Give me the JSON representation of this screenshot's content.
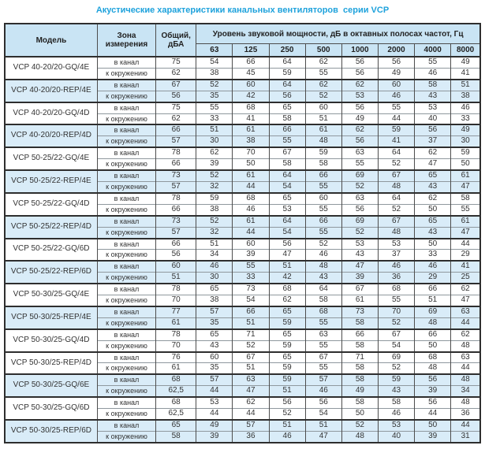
{
  "title": "Акустические характеристики канальных вентиляторов  серии VCP",
  "colors": {
    "title": "#1ea2dc",
    "header_bg": "#c9e4f4",
    "shaded_row_bg": "#d9ecf8",
    "border_dark": "#2e2e2e"
  },
  "table": {
    "headers": {
      "model": "Модель",
      "zone": "Зона измерения",
      "total": "Общий, дБА",
      "spl": "Уровень звуковой мощности, дБ в октавных полосах частот, Гц"
    },
    "freqs": [
      "63",
      "125",
      "250",
      "500",
      "1000",
      "2000",
      "4000",
      "8000"
    ],
    "zone_labels": [
      "в канал",
      "к окружению"
    ],
    "rows": [
      {
        "model": "VCP 40-20/20-GQ/4E",
        "shaded": false,
        "in_duct": {
          "total": "75",
          "values": [
            "54",
            "66",
            "64",
            "62",
            "56",
            "56",
            "55",
            "49"
          ]
        },
        "to_env": {
          "total": "62",
          "values": [
            "38",
            "45",
            "59",
            "55",
            "56",
            "49",
            "46",
            "41"
          ]
        }
      },
      {
        "model": "VCP 40-20/20-REP/4E",
        "shaded": true,
        "in_duct": {
          "total": "67",
          "values": [
            "52",
            "60",
            "64",
            "62",
            "62",
            "60",
            "58",
            "51"
          ]
        },
        "to_env": {
          "total": "56",
          "values": [
            "35",
            "42",
            "56",
            "52",
            "53",
            "46",
            "43",
            "38"
          ]
        }
      },
      {
        "model": "VCP 40-20/20-GQ/4D",
        "shaded": false,
        "in_duct": {
          "total": "75",
          "values": [
            "55",
            "68",
            "65",
            "60",
            "56",
            "55",
            "53",
            "46"
          ]
        },
        "to_env": {
          "total": "62",
          "values": [
            "33",
            "41",
            "58",
            "51",
            "49",
            "44",
            "40",
            "33"
          ]
        }
      },
      {
        "model": "VCP 40-20/20-REP/4D",
        "shaded": true,
        "in_duct": {
          "total": "66",
          "values": [
            "51",
            "61",
            "66",
            "61",
            "62",
            "59",
            "56",
            "49"
          ]
        },
        "to_env": {
          "total": "57",
          "values": [
            "30",
            "38",
            "55",
            "48",
            "56",
            "41",
            "37",
            "30"
          ]
        }
      },
      {
        "model": "VCP 50-25/22-GQ/4E",
        "shaded": false,
        "in_duct": {
          "total": "78",
          "values": [
            "62",
            "70",
            "67",
            "59",
            "63",
            "64",
            "62",
            "59"
          ]
        },
        "to_env": {
          "total": "66",
          "values": [
            "39",
            "50",
            "58",
            "58",
            "55",
            "52",
            "47",
            "50"
          ]
        }
      },
      {
        "model": "VCP 50-25/22-REP/4E",
        "shaded": true,
        "in_duct": {
          "total": "73",
          "values": [
            "52",
            "61",
            "64",
            "66",
            "69",
            "67",
            "65",
            "61"
          ]
        },
        "to_env": {
          "total": "57",
          "values": [
            "32",
            "44",
            "54",
            "55",
            "52",
            "48",
            "43",
            "47"
          ]
        }
      },
      {
        "model": "VCP 50-25/22-GQ/4D",
        "shaded": false,
        "in_duct": {
          "total": "78",
          "values": [
            "59",
            "68",
            "65",
            "60",
            "63",
            "64",
            "62",
            "58"
          ]
        },
        "to_env": {
          "total": "66",
          "values": [
            "38",
            "46",
            "53",
            "55",
            "56",
            "52",
            "50",
            "55"
          ]
        }
      },
      {
        "model": "VCP 50-25/22-REP/4D",
        "shaded": true,
        "in_duct": {
          "total": "73",
          "values": [
            "52",
            "61",
            "64",
            "66",
            "69",
            "67",
            "65",
            "61"
          ]
        },
        "to_env": {
          "total": "57",
          "values": [
            "32",
            "44",
            "54",
            "55",
            "52",
            "48",
            "43",
            "47"
          ]
        }
      },
      {
        "model": "VCP 50-25/22-GQ/6D",
        "shaded": false,
        "in_duct": {
          "total": "66",
          "values": [
            "51",
            "60",
            "56",
            "52",
            "53",
            "53",
            "50",
            "44"
          ]
        },
        "to_env": {
          "total": "56",
          "values": [
            "34",
            "39",
            "47",
            "46",
            "43",
            "37",
            "33",
            "29"
          ]
        }
      },
      {
        "model": "VCP 50-25/22-REP/6D",
        "shaded": true,
        "in_duct": {
          "total": "60",
          "values": [
            "46",
            "55",
            "51",
            "48",
            "47",
            "46",
            "46",
            "41"
          ]
        },
        "to_env": {
          "total": "51",
          "values": [
            "30",
            "33",
            "42",
            "43",
            "39",
            "36",
            "29",
            "25"
          ]
        }
      },
      {
        "model": "VCP 50-30/25-GQ/4E",
        "shaded": false,
        "in_duct": {
          "total": "78",
          "values": [
            "65",
            "73",
            "68",
            "64",
            "67",
            "68",
            "66",
            "62"
          ]
        },
        "to_env": {
          "total": "70",
          "values": [
            "38",
            "54",
            "62",
            "58",
            "61",
            "55",
            "51",
            "47"
          ]
        }
      },
      {
        "model": "VCP 50-30/25-REP/4E",
        "shaded": true,
        "in_duct": {
          "total": "77",
          "values": [
            "57",
            "66",
            "65",
            "68",
            "73",
            "70",
            "69",
            "63"
          ]
        },
        "to_env": {
          "total": "61",
          "values": [
            "35",
            "51",
            "59",
            "55",
            "58",
            "52",
            "48",
            "44"
          ]
        }
      },
      {
        "model": "VCP 50-30/25-GQ/4D",
        "shaded": false,
        "in_duct": {
          "total": "78",
          "values": [
            "65",
            "71",
            "65",
            "63",
            "66",
            "67",
            "66",
            "62"
          ]
        },
        "to_env": {
          "total": "70",
          "values": [
            "43",
            "52",
            "59",
            "55",
            "58",
            "54",
            "50",
            "48"
          ]
        }
      },
      {
        "model": "VCP 50-30/25-REP/4D",
        "shaded": false,
        "in_duct": {
          "total": "76",
          "values": [
            "60",
            "67",
            "65",
            "67",
            "71",
            "69",
            "68",
            "63"
          ]
        },
        "to_env": {
          "total": "61",
          "values": [
            "35",
            "51",
            "59",
            "55",
            "58",
            "52",
            "48",
            "44"
          ]
        }
      },
      {
        "model": "VCP 50-30/25-GQ/6E",
        "shaded": true,
        "in_duct": {
          "total": "68",
          "values": [
            "57",
            "63",
            "59",
            "57",
            "58",
            "59",
            "56",
            "48"
          ]
        },
        "to_env": {
          "total": "62,5",
          "values": [
            "44",
            "47",
            "51",
            "46",
            "49",
            "43",
            "39",
            "34"
          ]
        }
      },
      {
        "model": "VCP 50-30/25-GQ/6D",
        "shaded": false,
        "in_duct": {
          "total": "68",
          "values": [
            "53",
            "62",
            "56",
            "56",
            "58",
            "58",
            "56",
            "48"
          ]
        },
        "to_env": {
          "total": "62,5",
          "values": [
            "44",
            "44",
            "52",
            "54",
            "50",
            "46",
            "44",
            "36"
          ]
        }
      },
      {
        "model": "VCP 50-30/25-REP/6D",
        "shaded": true,
        "in_duct": {
          "total": "65",
          "values": [
            "49",
            "57",
            "51",
            "51",
            "52",
            "53",
            "50",
            "44"
          ]
        },
        "to_env": {
          "total": "58",
          "values": [
            "39",
            "36",
            "46",
            "47",
            "48",
            "40",
            "39",
            "31"
          ]
        }
      }
    ]
  }
}
